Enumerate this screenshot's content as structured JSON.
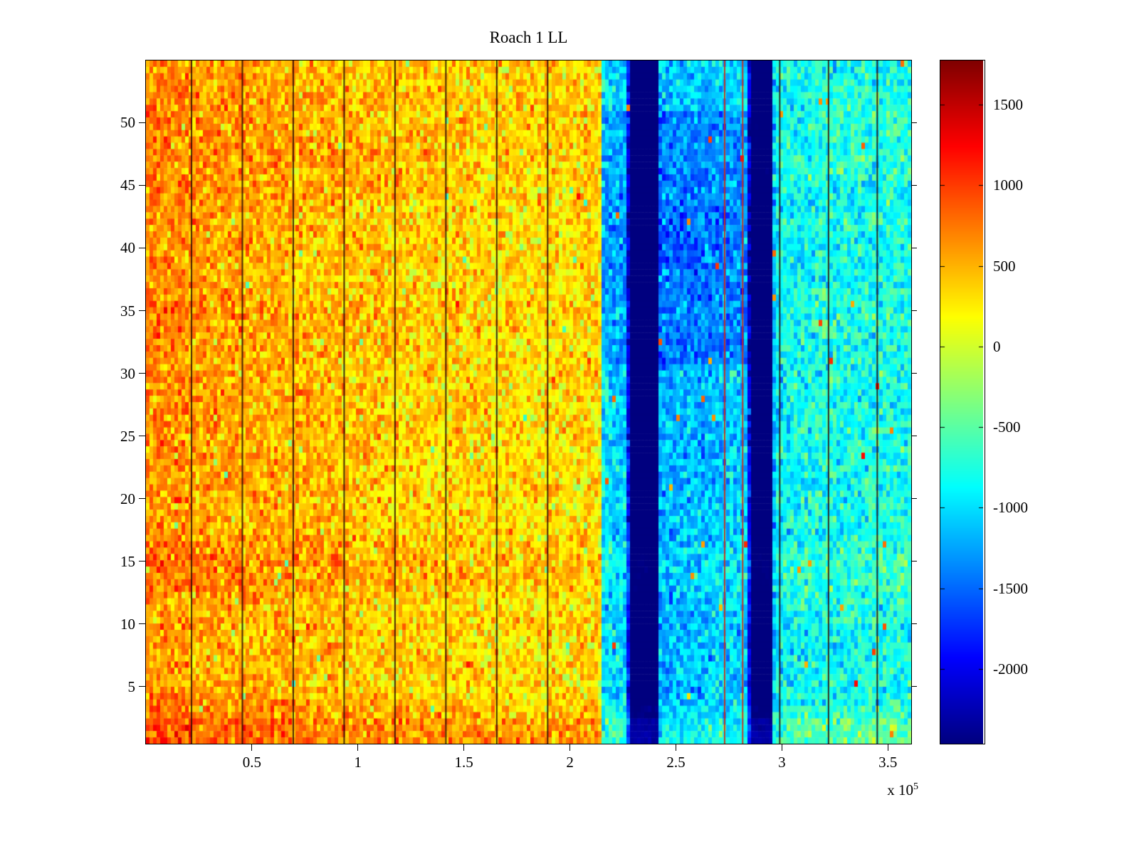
{
  "page": {
    "background": "#ffffff"
  },
  "chart_data": {
    "type": "heatmap",
    "title": "Roach 1 LL",
    "x_axis": {
      "range_1e5": [
        0,
        3.61
      ],
      "ticks": [
        0.5,
        1,
        1.5,
        2,
        2.5,
        3,
        3.5
      ],
      "tick_labels": [
        "0.5",
        "1",
        "1.5",
        "2",
        "2.5",
        "3",
        "3.5"
      ],
      "exponent_prefix": "x 10",
      "exponent": "5"
    },
    "y_axis": {
      "range": [
        0.43,
        54.97
      ],
      "ticks": [
        5,
        10,
        15,
        20,
        25,
        30,
        35,
        40,
        45,
        50
      ],
      "tick_labels": [
        "5",
        "10",
        "15",
        "20",
        "25",
        "30",
        "35",
        "40",
        "45",
        "50"
      ]
    },
    "colorbar": {
      "colormap": "jet",
      "vmin": -2464,
      "vmax": 1774,
      "ticks": [
        1500,
        1000,
        500,
        0,
        -500,
        -1000,
        -1500,
        -2000
      ],
      "tick_labels": [
        "1500",
        "1000",
        "500",
        "0",
        "-500",
        "-1000",
        "-1500",
        "-2000"
      ]
    },
    "heatmap": {
      "n_rows": 54,
      "x_profile": [
        [
          0.0,
          650
        ],
        [
          0.1,
          640
        ],
        [
          0.3,
          560
        ],
        [
          0.6,
          500
        ],
        [
          0.9,
          440
        ],
        [
          1.2,
          380
        ],
        [
          1.5,
          330
        ],
        [
          1.8,
          300
        ],
        [
          2.0,
          310
        ],
        [
          2.14,
          330
        ],
        [
          2.155,
          -950
        ],
        [
          2.27,
          -1050
        ],
        [
          2.28,
          -2600
        ],
        [
          2.415,
          -2600
        ],
        [
          2.425,
          -1200
        ],
        [
          2.6,
          -1150
        ],
        [
          2.72,
          -1100
        ],
        [
          2.84,
          -1050
        ],
        [
          2.85,
          -2600
        ],
        [
          2.955,
          -2600
        ],
        [
          2.965,
          -900
        ],
        [
          3.1,
          -830
        ],
        [
          3.4,
          -800
        ],
        [
          3.61,
          -780
        ]
      ],
      "row_offsets": [
        300,
        260,
        140,
        60,
        0,
        0,
        0,
        0,
        0,
        0,
        0,
        0,
        100,
        130,
        130,
        90,
        0,
        0,
        0,
        0,
        0,
        0,
        0,
        0,
        0,
        0,
        0,
        0,
        0,
        0,
        0,
        0,
        60,
        60,
        60,
        0,
        0,
        0,
        0,
        0,
        0,
        0,
        0,
        60,
        80,
        90,
        90,
        80,
        70,
        60,
        60,
        50,
        40,
        30
      ],
      "upper_rows_blue_boost": {
        "row_min": 31,
        "row_max": 50,
        "x_min": 2.15,
        "x_max": 2.85,
        "offset": -300
      },
      "noise_sd": 230,
      "dark_vlines_x": [
        0.215,
        0.455,
        0.695,
        0.935,
        1.175,
        1.415,
        1.655,
        1.895,
        2.99,
        3.22,
        3.45
      ],
      "red_vlines_x": [
        2.73,
        2.815
      ],
      "vline_dark_color": "#2a0a06",
      "vline_red_color": "#d42a10"
    }
  }
}
